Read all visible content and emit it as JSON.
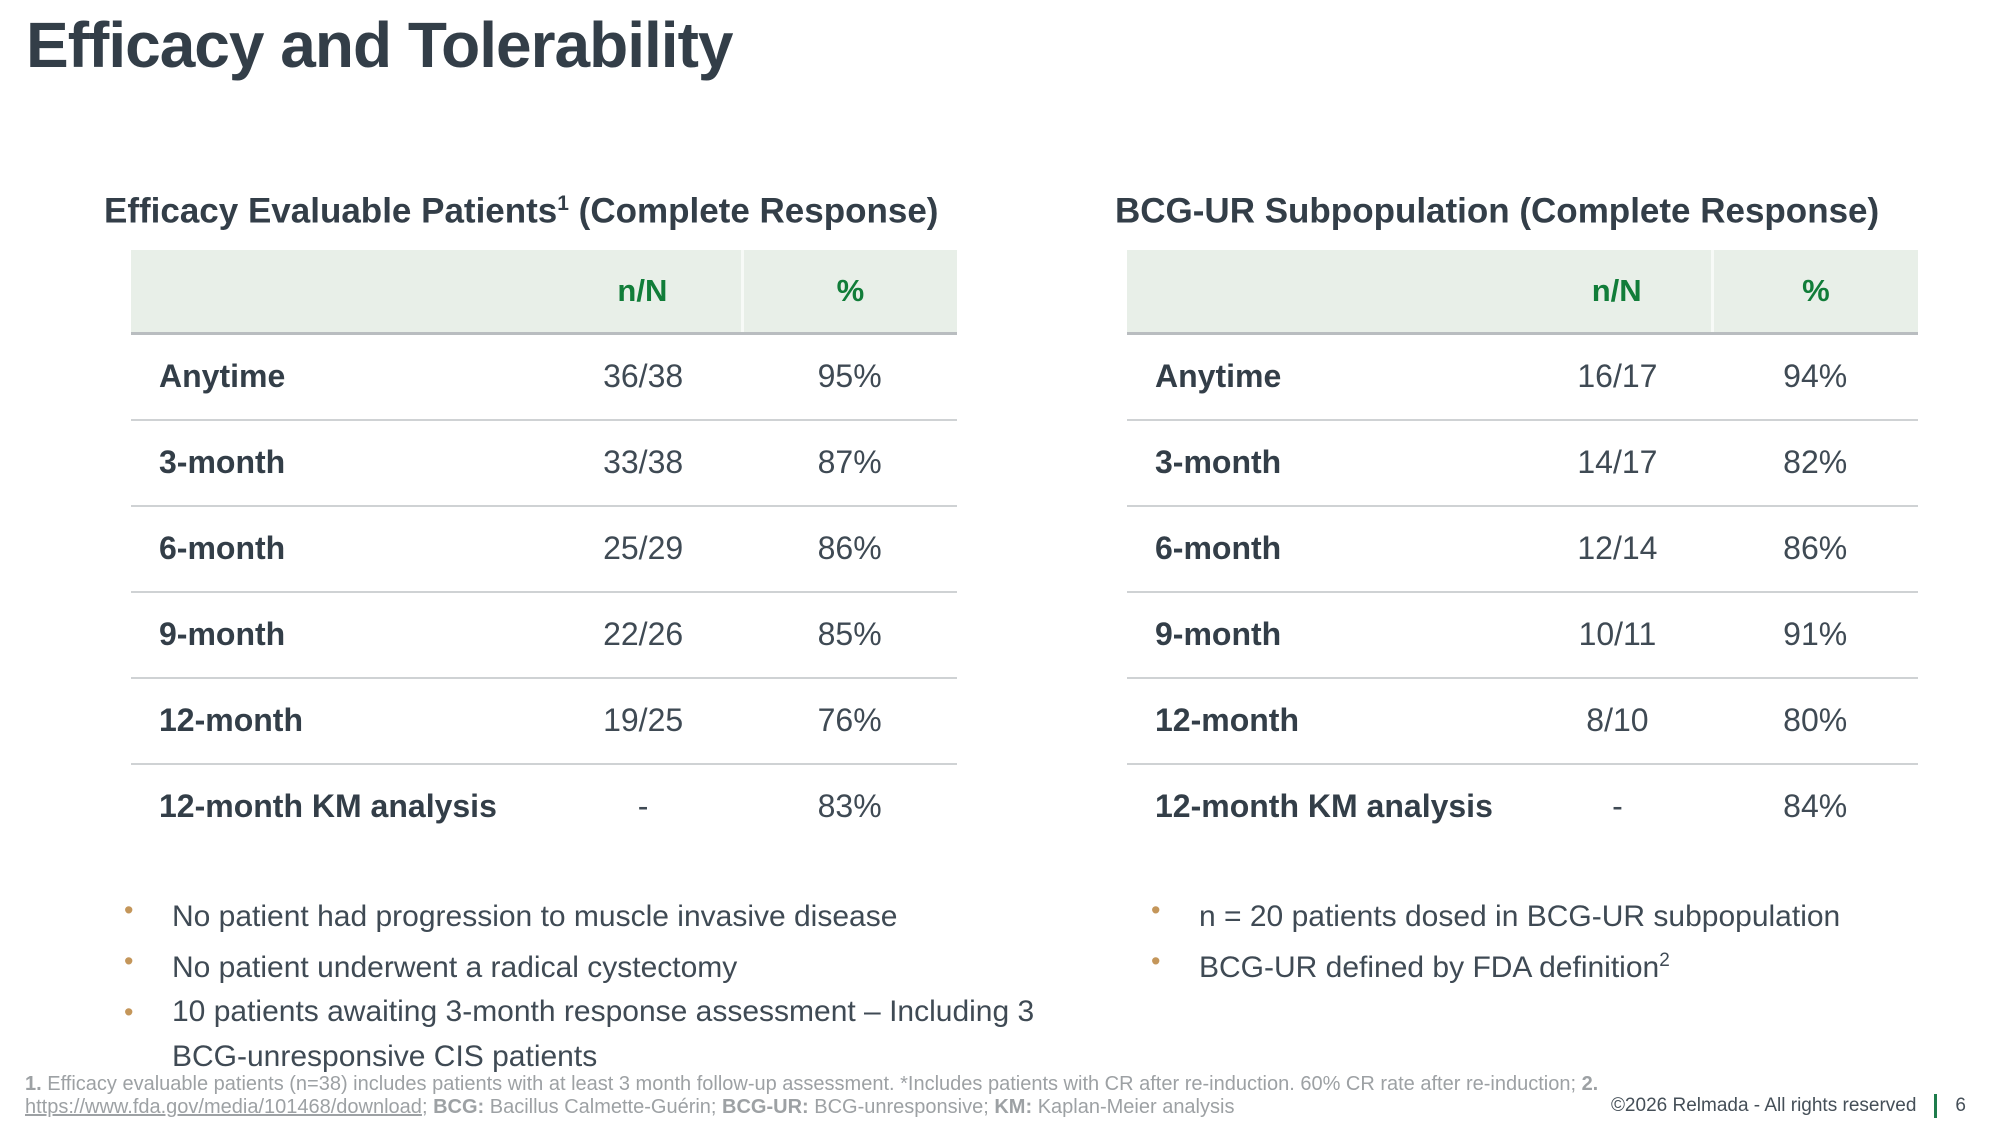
{
  "slide": {
    "title": "Efficacy and Tolerability",
    "copyright": "©2026 Relmada - All rights reserved",
    "page_number": "6",
    "bullet_char": "•",
    "colors": {
      "accent_green": "#117d39",
      "table_header_bg": "#e8efe8",
      "bullet_gold": "#c4965a",
      "heading_slate": "#333e48",
      "footnote_gray": "#9da1a4"
    }
  },
  "left_panel": {
    "heading_pre": "Efficacy Evaluable Patients",
    "heading_sup": "1",
    "heading_post": " (Complete Response)",
    "table": {
      "columns": [
        "n/N",
        "%"
      ],
      "rows": [
        {
          "label": "Anytime",
          "n_N": "36/38",
          "pct": "95%"
        },
        {
          "label": "3-month",
          "n_N": "33/38",
          "pct": "87%"
        },
        {
          "label": "6-month",
          "n_N": "25/29",
          "pct": "86%"
        },
        {
          "label": "9-month",
          "n_N": "22/26",
          "pct": "85%"
        },
        {
          "label": "12-month",
          "n_N": "19/25",
          "pct": "76%"
        },
        {
          "label": "12-month KM analysis",
          "n_N": "-",
          "pct": "83%"
        }
      ]
    },
    "bullets": [
      {
        "text": "No patient had progression to muscle invasive disease",
        "sup": ""
      },
      {
        "text": "No patient underwent a radical cystectomy",
        "sup": ""
      },
      {
        "text": "10 patients awaiting 3-month response assessment – Including 3 BCG-unresponsive CIS patients",
        "sup": ""
      }
    ]
  },
  "right_panel": {
    "heading_pre": "BCG-UR Subpopulation (Complete Response)",
    "heading_sup": "",
    "heading_post": "",
    "table": {
      "columns": [
        "n/N",
        "%"
      ],
      "rows": [
        {
          "label": "Anytime",
          "n_N": "16/17",
          "pct": "94%"
        },
        {
          "label": "3-month",
          "n_N": "14/17",
          "pct": "82%"
        },
        {
          "label": "6-month",
          "n_N": "12/14",
          "pct": "86%"
        },
        {
          "label": "9-month",
          "n_N": "10/11",
          "pct": "91%"
        },
        {
          "label": "12-month",
          "n_N": "8/10",
          "pct": "80%"
        },
        {
          "label": "12-month KM analysis",
          "n_N": "-",
          "pct": "84%"
        }
      ]
    },
    "bullets": [
      {
        "text": "n = 20 patients dosed in BCG-UR subpopulation",
        "sup": ""
      },
      {
        "text": "BCG-UR defined by FDA definition",
        "sup": "2"
      }
    ]
  },
  "footnotes": {
    "ref1_marker": "1.",
    "ref1_text": "Efficacy evaluable patients (n=38) includes patients with at least 3 month follow-up assessment. *Includes patients with CR after re-induction. 60% CR rate after re-induction;",
    "ref2_marker": "2.",
    "link": "https://www.fda.gov/media/101468/download",
    "after_link": ";",
    "bcg_label": "BCG:",
    "bcg_text": "Bacillus Calmette-Guérin;",
    "bcgur_label": "BCG-UR:",
    "bcgur_text": "BCG-unresponsive;",
    "km_label": "KM:",
    "km_text": "Kaplan-Meier analysis"
  }
}
